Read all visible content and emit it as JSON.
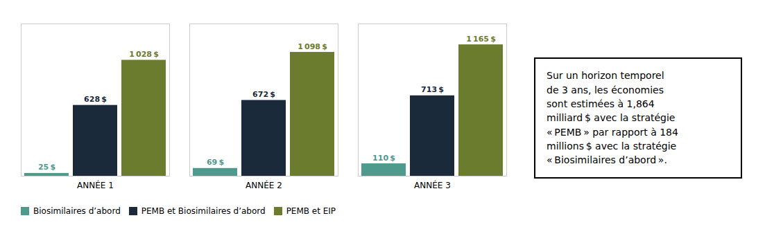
{
  "chart_data": {
    "type": "bar",
    "categories": [
      "ANNÉE 1",
      "ANNÉE 2",
      "ANNÉE 3"
    ],
    "series": [
      {
        "name": "Biosimilaires d’abord",
        "color": "#4e9a8c",
        "values": [
          25,
          69,
          110
        ],
        "value_labels": [
          "25 $",
          "69 $",
          "110 $"
        ]
      },
      {
        "name": "PEMB et Biosimilaires d’abord",
        "color": "#1b2a3b",
        "values": [
          628,
          672,
          713
        ],
        "value_labels": [
          "628 $",
          "672 $",
          "713 $"
        ]
      },
      {
        "name": "PEMB et EIP",
        "color": "#6b7c2e",
        "values": [
          1028,
          1098,
          1165
        ],
        "value_labels": [
          "1 028 $",
          "1 098 $",
          "1 165 $"
        ]
      }
    ],
    "ylim": [
      0,
      1350
    ],
    "tick_labels": "x",
    "data_labels": true,
    "grid": false,
    "legend": "bottom",
    "annotation": [
      "Sur un horizon temporel",
      "de 3 ans, les économies",
      "sont estimées à 1,864",
      "milliard $ avec la stratégie",
      "« PEMB » par rapport à 184",
      "millions $ avec la stratégie",
      "« Biosimilaires d’abord »."
    ]
  }
}
